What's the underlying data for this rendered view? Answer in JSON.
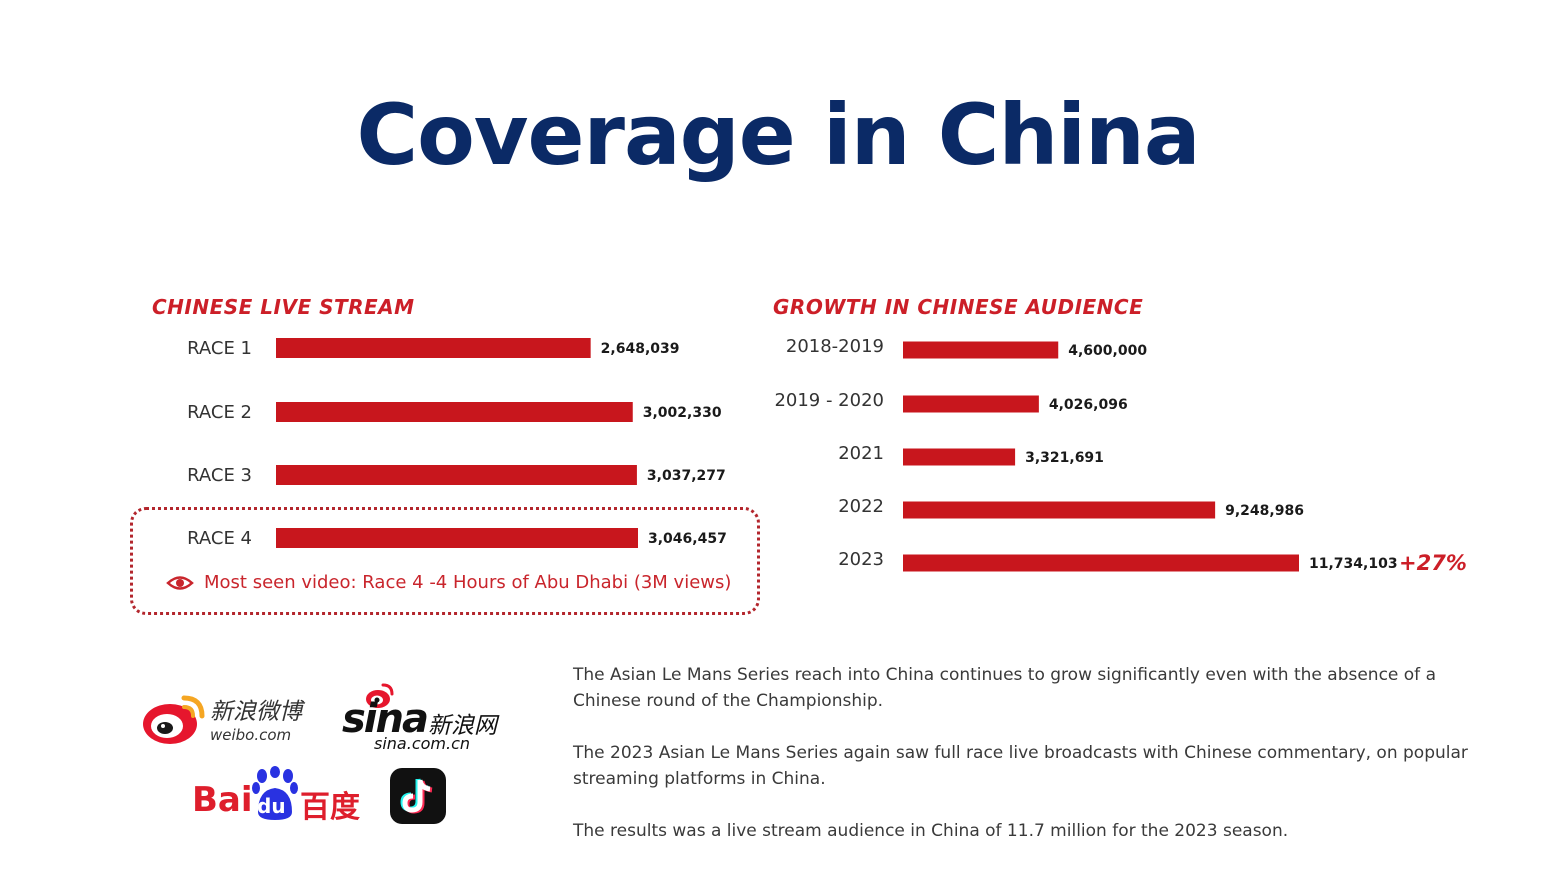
{
  "title": "Coverage in China",
  "chart_data": [
    {
      "type": "bar",
      "orientation": "horizontal",
      "title": "CHINESE LIVE STREAM",
      "categories": [
        "RACE 1",
        "RACE 2",
        "RACE 3",
        "RACE 4"
      ],
      "values": [
        2648039,
        3002330,
        3037277,
        3046457
      ],
      "value_labels": [
        "2,648,039",
        "3,002,330",
        "3,037,277",
        "3,046,457"
      ],
      "highlight": "RACE 4",
      "note": "Most seen video: Race 4 -4 Hours of Abu Dhabi (3M views)",
      "color": "#c8161d"
    },
    {
      "type": "bar",
      "orientation": "horizontal",
      "title": "GROWTH IN CHINESE AUDIENCE",
      "categories": [
        "2018-2019",
        "2019 - 2020",
        "2021",
        "2022",
        "2023"
      ],
      "values": [
        4600000,
        4026096,
        3321691,
        9248986,
        11734103
      ],
      "value_labels": [
        "4,600,000",
        "4,026,096",
        "3,321,691",
        "9,248,986",
        "11,734,103"
      ],
      "growth_label": "+27%",
      "color": "#c8161d"
    }
  ],
  "paragraphs": [
    "The Asian Le Mans Series reach into China continues to grow significantly even with the absence of a Chinese round of the Championship.",
    "The 2023 Asian Le Mans Series again saw full race live broadcasts with Chinese commentary, on popular streaming platforms in China.",
    "The results was a live stream audience in China of 11.7 million for the 2023 season."
  ],
  "logos": {
    "weibo": {
      "cn": "新浪微博",
      "domain": "weibo.com"
    },
    "sina": {
      "word": "sina",
      "cn": "新浪网",
      "domain": "sina.com.cn"
    },
    "baidu": {
      "word_left": "Bai",
      "word_mid": "du",
      "cn": "百度"
    },
    "tiktok": {
      "icon": "tiktok-note-icon"
    }
  },
  "colors": {
    "title": "#0b2a66",
    "accent": "#cc1f28",
    "bar": "#c8161d"
  }
}
